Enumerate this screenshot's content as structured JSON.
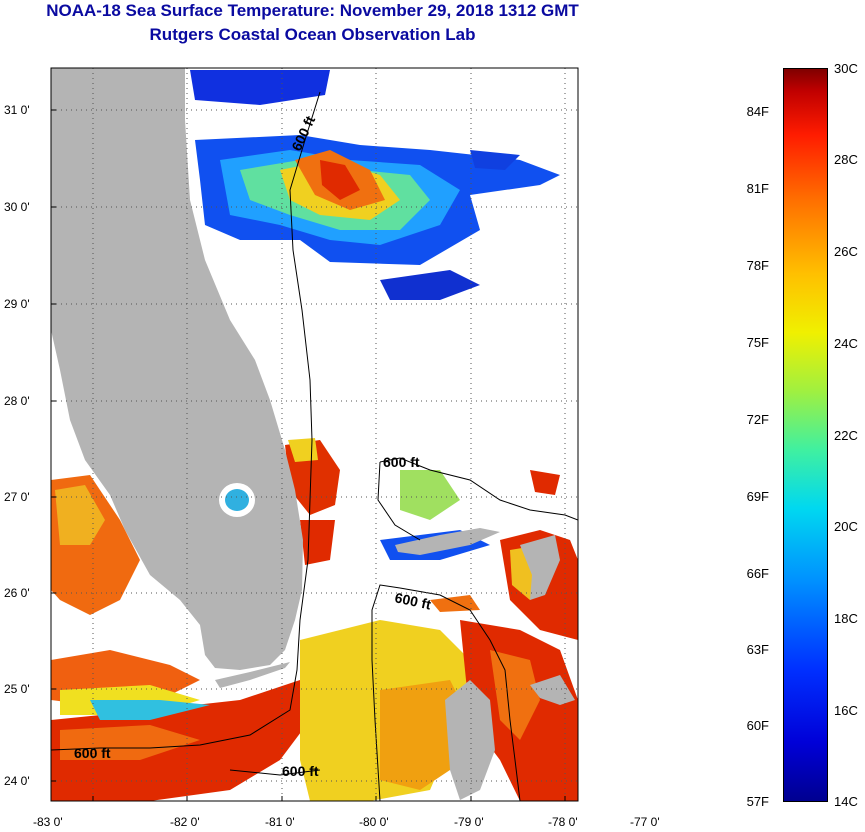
{
  "header": {
    "title": "NOAA-18 Sea Surface Temperature:  November 29, 2018 1312 GMT",
    "subtitle": "Rutgers Coastal Ocean Observation Lab"
  },
  "map": {
    "lat_labels": [
      "31 0'",
      "30 0'",
      "29 0'",
      "28 0'",
      "27 0'",
      "26 0'",
      "25 0'",
      "24 0'"
    ],
    "lon_labels": [
      "-83 0'",
      "-82 0'",
      "-81 0'",
      "-80 0'",
      "-79 0'",
      "-78 0'",
      "-77 0'"
    ],
    "contour_labels": [
      "600 ft",
      "600 ft",
      "600 ft",
      "600 ft",
      "600 ft"
    ],
    "colors": {
      "land": "#b4b4b4",
      "gridline": "#555555"
    }
  },
  "colorbar": {
    "fahrenheit_labels": [
      "84F",
      "81F",
      "78F",
      "75F",
      "72F",
      "69F",
      "66F",
      "63F",
      "60F",
      "57F"
    ],
    "celsius_labels": [
      "30C",
      "28C",
      "26C",
      "24C",
      "22C",
      "20C",
      "18C",
      "16C",
      "14C"
    ]
  }
}
